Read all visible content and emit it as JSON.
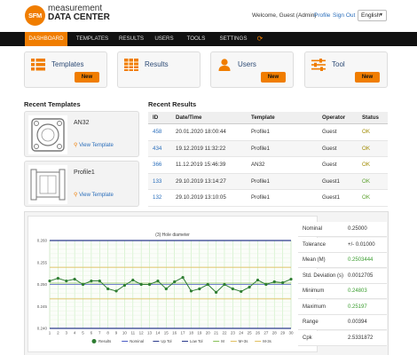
{
  "brand": {
    "logo": "SFM",
    "line1": "measurement",
    "line2": "DATA CENTER"
  },
  "header": {
    "welcome": "Welcome, Guest (Admin)",
    "profile": "Profile",
    "signout": "Sign Out",
    "language": "English"
  },
  "nav": {
    "items": [
      "DASHBOARD",
      "TEMPLATES",
      "RESULTS",
      "USERS",
      "TOOLS",
      "SETTINGS"
    ],
    "active": "DASHBOARD",
    "refresh_icon": "refresh-icon"
  },
  "cards": [
    {
      "title": "Templates",
      "button": "New",
      "icon": "templates-grid-icon"
    },
    {
      "title": "Results",
      "button": "New",
      "icon": "results-table-icon"
    },
    {
      "title": "Users",
      "button": "New",
      "icon": "user-icon"
    },
    {
      "title": "Tool",
      "button": "New",
      "icon": "tool-sliders-icon"
    }
  ],
  "colors": {
    "accent": "#f07d00",
    "nav_bg": "#111111",
    "ok_green": "#5aa02c",
    "link": "#2a6ebb"
  },
  "recent_templates": {
    "title": "Recent Templates",
    "items": [
      {
        "name": "AN32",
        "action": "View Template"
      },
      {
        "name": "Profile1",
        "action": "View Template"
      }
    ]
  },
  "recent_results": {
    "title": "Recent Results",
    "columns": [
      "ID",
      "Date/Time",
      "Template",
      "Operator",
      "Status"
    ],
    "rows": [
      {
        "id": "458",
        "datetime": "20.01.2020 18:00:44",
        "template": "Profile1",
        "operator": "Guest",
        "status": "OK"
      },
      {
        "id": "434",
        "datetime": "19.12.2019 11:32:22",
        "template": "Profile1",
        "operator": "Guest",
        "status": "OK"
      },
      {
        "id": "366",
        "datetime": "11.12.2019 15:46:39",
        "template": "AN32",
        "operator": "Guest",
        "status": "OK"
      },
      {
        "id": "133",
        "datetime": "29.10.2019 13:14:27",
        "template": "Profile1",
        "operator": "Guest1",
        "status": "OK"
      },
      {
        "id": "132",
        "datetime": "29.10.2019 13:10:05",
        "template": "Profile1",
        "operator": "Guest1",
        "status": "OK"
      }
    ]
  },
  "chart_data": {
    "type": "line",
    "title": "(3) Hole diameter",
    "x": [
      1,
      2,
      3,
      4,
      5,
      6,
      7,
      8,
      9,
      10,
      11,
      12,
      13,
      14,
      15,
      16,
      17,
      18,
      19,
      20,
      21,
      22,
      23,
      24,
      25,
      26,
      27,
      28,
      29,
      30
    ],
    "ylim": [
      0.24,
      0.26
    ],
    "yticks": [
      "0.260",
      "0.255",
      "0.250",
      "0.245",
      "0.240"
    ],
    "grid": true,
    "legend_position": "bottom",
    "series": [
      {
        "name": "Results",
        "color": "#2e7d32",
        "values": [
          0.2508,
          0.2514,
          0.2508,
          0.2512,
          0.25,
          0.2508,
          0.2508,
          0.249,
          0.2485,
          0.2498,
          0.251,
          0.25,
          0.25,
          0.2508,
          0.249,
          0.2506,
          0.2516,
          0.2485,
          0.249,
          0.25,
          0.2482,
          0.25,
          0.249,
          0.2484,
          0.2494,
          0.251,
          0.25,
          0.2506,
          0.2504,
          0.2512
        ]
      },
      {
        "name": "Nominal",
        "color": "#4a5bc4",
        "constant": 0.25
      },
      {
        "name": "Up Tol",
        "color": "#2b3a8c",
        "constant": 0.26
      },
      {
        "name": "Low Tol",
        "color": "#2b3a8c",
        "constant": 0.24
      },
      {
        "name": "M",
        "color": "#88c057",
        "constant": 0.2503
      },
      {
        "name": "M+3s",
        "color": "#e0c060",
        "constant": 0.2539
      },
      {
        "name": "M-3s",
        "color": "#e0c060",
        "constant": 0.2467
      }
    ]
  },
  "stats": [
    {
      "label": "Nominal",
      "value": "0.25000",
      "highlight": false
    },
    {
      "label": "Tolerance",
      "value": "+/- 0.01000",
      "highlight": false
    },
    {
      "label": "Mean (M)",
      "value": "0.2503444",
      "highlight": true
    },
    {
      "label": "Std. Deviation (s)",
      "value": "0.0012705",
      "highlight": false
    },
    {
      "label": "Minimum",
      "value": "0.24803",
      "highlight": true
    },
    {
      "label": "Maximum",
      "value": "0.25197",
      "highlight": true
    },
    {
      "label": "Range",
      "value": "0.00394",
      "highlight": false
    },
    {
      "label": "Cpk",
      "value": "2.5331872",
      "highlight": false
    }
  ]
}
